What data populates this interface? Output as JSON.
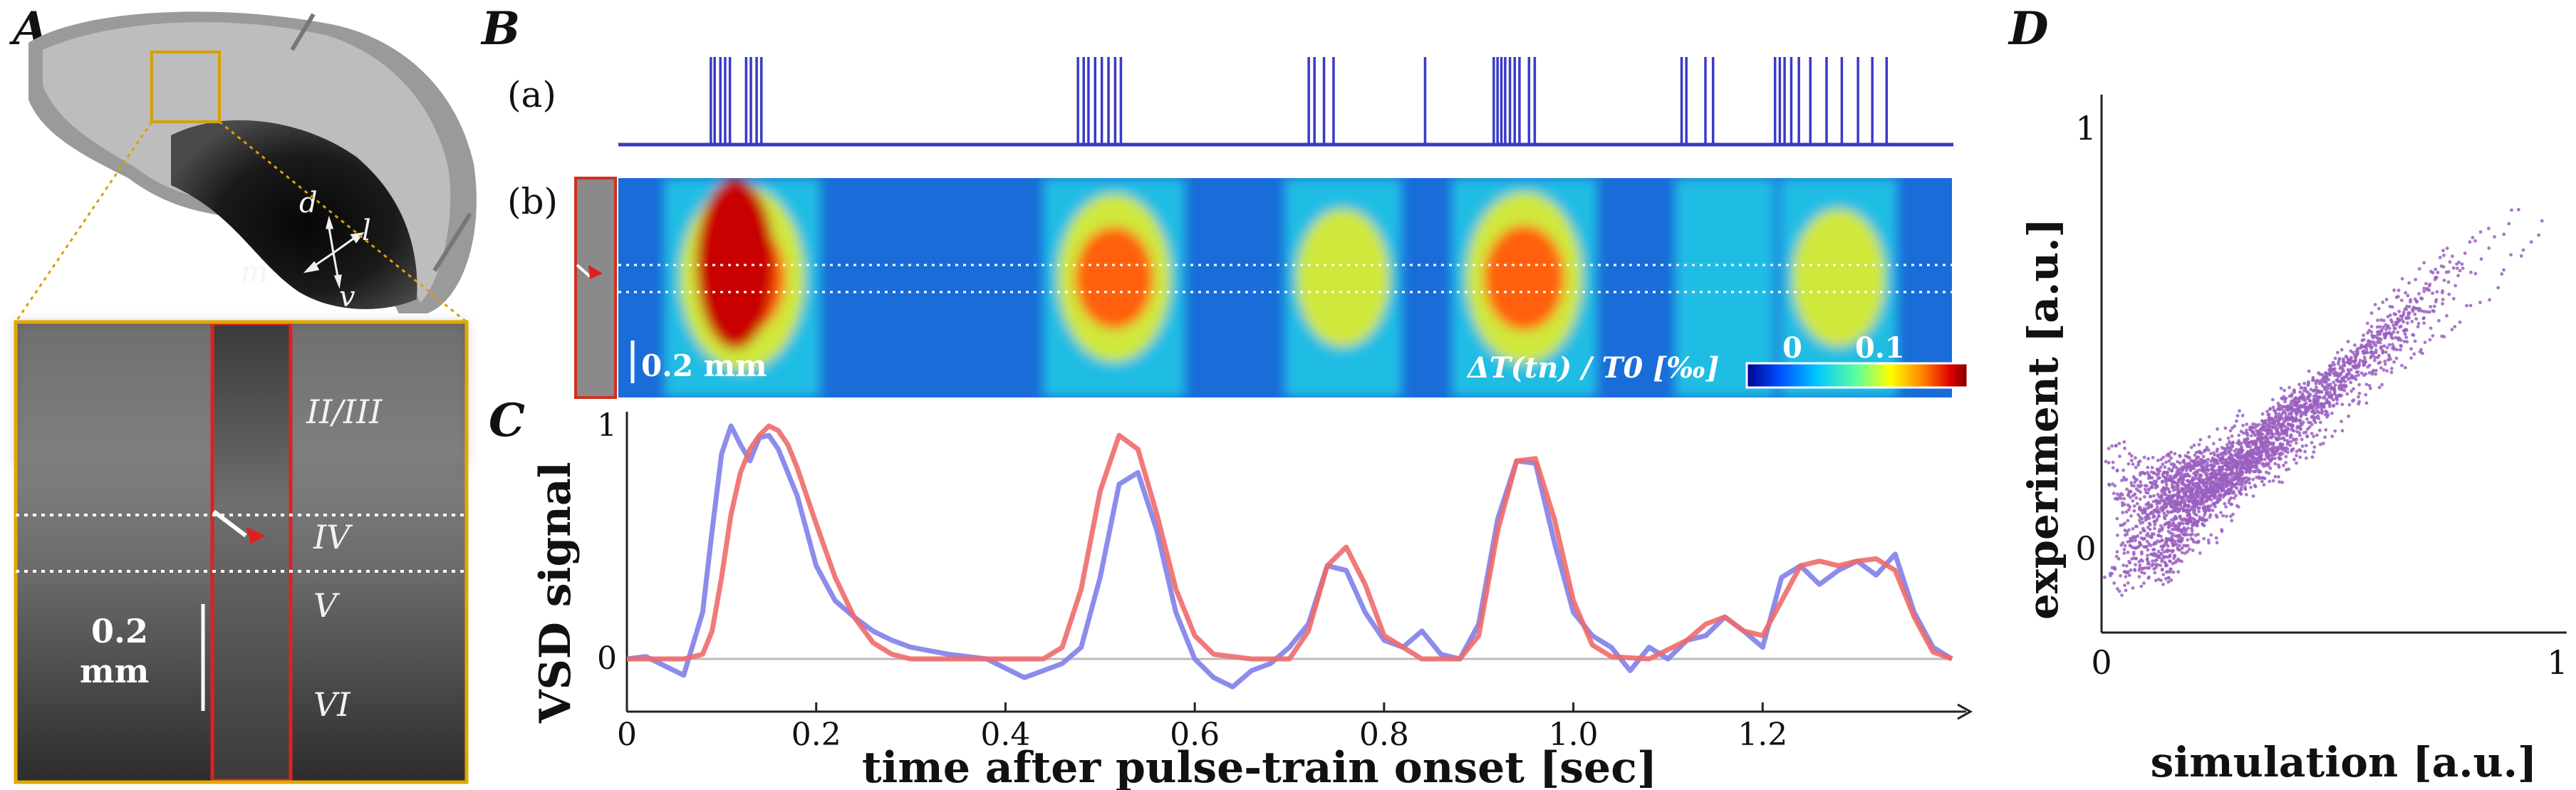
{
  "panels": {
    "A": {
      "letter": "A",
      "orientation": {
        "d": "d",
        "l": "l",
        "m": "m",
        "v": "v"
      },
      "layers": [
        "II/III",
        "IV",
        "V",
        "VI"
      ],
      "scale_bar": {
        "line1": "0.2",
        "line2": "mm"
      }
    },
    "B": {
      "letter": "B",
      "row_a_label": "(a)",
      "row_b_label": "(b)",
      "scale_bar_label": "0.2 mm",
      "colorbar": {
        "title": "ΔT(tn) / T0 [‰]",
        "tick0": "0",
        "tick1": "0.1",
        "colors": [
          "#00008f",
          "#0050ff",
          "#00c8ff",
          "#60ff9a",
          "#ffff00",
          "#ff8000",
          "#e00000",
          "#800000"
        ]
      },
      "pulse_color": "#3a3ac8"
    },
    "C": {
      "letter": "C",
      "ylabel": "VSD signal",
      "xlabel": "time after pulse-train onset [sec]",
      "xticks": [
        "0",
        "0.2",
        "0.4",
        "0.6",
        "0.8",
        "1.0",
        "1.2"
      ],
      "yticks": [
        "0",
        "1"
      ]
    },
    "D": {
      "letter": "D",
      "xlabel": "simulation [a.u.]",
      "ylabel": "experiment [a.u.]",
      "xticks": [
        "0",
        "1"
      ],
      "yticks": [
        "0",
        "1"
      ]
    }
  },
  "chart_data": [
    {
      "type": "line",
      "panel": "B(a)",
      "x_unit": "sec",
      "pulse_times": [
        0.097,
        0.101,
        0.107,
        0.112,
        0.117,
        0.134,
        0.139,
        0.145,
        0.15,
        0.482,
        0.488,
        0.493,
        0.5,
        0.507,
        0.514,
        0.521,
        0.527,
        0.724,
        0.73,
        0.74,
        0.75,
        0.846,
        0.918,
        0.922,
        0.926,
        0.93,
        0.935,
        0.94,
        0.945,
        0.955,
        0.961,
        1.115,
        1.12,
        1.14,
        1.148,
        1.213,
        1.218,
        1.223,
        1.23,
        1.238,
        1.25,
        1.267,
        1.283,
        1.3,
        1.315,
        1.33
      ],
      "xlim": [
        0,
        1.4
      ]
    },
    {
      "type": "heatmap",
      "panel": "B(b)",
      "x_unit": "sec",
      "value_unit": "‰",
      "clim": [
        0,
        0.12
      ],
      "response_peaks": [
        {
          "t": 0.13,
          "amplitude": 1.0
        },
        {
          "t": 0.52,
          "amplitude": 0.8
        },
        {
          "t": 0.76,
          "amplitude": 0.45
        },
        {
          "t": 0.95,
          "amplitude": 0.85
        },
        {
          "t": 1.16,
          "amplitude": 0.2
        },
        {
          "t": 1.28,
          "amplitude": 0.45
        }
      ]
    },
    {
      "type": "line",
      "panel": "C",
      "xlabel": "time after pulse-train onset [sec]",
      "ylabel": "VSD signal",
      "xlim": [
        0,
        1.4
      ],
      "ylim": [
        -0.15,
        1.05
      ],
      "series": [
        {
          "color": "#8080ea",
          "x": [
            0,
            0.02,
            0.04,
            0.06,
            0.08,
            0.09,
            0.1,
            0.11,
            0.12,
            0.13,
            0.14,
            0.15,
            0.16,
            0.18,
            0.2,
            0.22,
            0.24,
            0.26,
            0.28,
            0.3,
            0.34,
            0.38,
            0.42,
            0.44,
            0.46,
            0.48,
            0.5,
            0.52,
            0.54,
            0.56,
            0.58,
            0.6,
            0.62,
            0.64,
            0.66,
            0.68,
            0.7,
            0.72,
            0.74,
            0.76,
            0.78,
            0.8,
            0.82,
            0.84,
            0.86,
            0.88,
            0.9,
            0.92,
            0.94,
            0.96,
            0.98,
            1.0,
            1.02,
            1.04,
            1.06,
            1.08,
            1.1,
            1.12,
            1.14,
            1.16,
            1.18,
            1.2,
            1.22,
            1.24,
            1.26,
            1.28,
            1.3,
            1.32,
            1.34,
            1.36,
            1.38,
            1.4
          ],
          "y": [
            0,
            0.01,
            -0.03,
            -0.07,
            0.2,
            0.55,
            0.88,
            1.0,
            0.92,
            0.85,
            0.95,
            0.96,
            0.9,
            0.7,
            0.4,
            0.25,
            0.18,
            0.12,
            0.08,
            0.05,
            0.02,
            0.0,
            -0.08,
            -0.05,
            -0.02,
            0.05,
            0.35,
            0.75,
            0.8,
            0.55,
            0.2,
            0.0,
            -0.08,
            -0.12,
            -0.05,
            -0.02,
            0.05,
            0.15,
            0.4,
            0.38,
            0.2,
            0.08,
            0.05,
            0.12,
            0.02,
            0.0,
            0.15,
            0.6,
            0.85,
            0.84,
            0.5,
            0.2,
            0.1,
            0.05,
            -0.05,
            0.05,
            0.0,
            0.08,
            0.1,
            0.18,
            0.12,
            0.05,
            0.35,
            0.4,
            0.32,
            0.38,
            0.42,
            0.36,
            0.45,
            0.2,
            0.05,
            0.0
          ]
        },
        {
          "color": "#f06a6a",
          "x": [
            0,
            0.04,
            0.06,
            0.08,
            0.09,
            0.1,
            0.11,
            0.12,
            0.13,
            0.14,
            0.15,
            0.16,
            0.17,
            0.18,
            0.2,
            0.22,
            0.24,
            0.26,
            0.28,
            0.3,
            0.34,
            0.4,
            0.44,
            0.46,
            0.48,
            0.5,
            0.52,
            0.54,
            0.56,
            0.58,
            0.6,
            0.62,
            0.66,
            0.7,
            0.72,
            0.74,
            0.76,
            0.78,
            0.8,
            0.84,
            0.88,
            0.9,
            0.92,
            0.94,
            0.96,
            0.98,
            1.0,
            1.02,
            1.04,
            1.08,
            1.12,
            1.14,
            1.16,
            1.18,
            1.2,
            1.22,
            1.24,
            1.26,
            1.28,
            1.3,
            1.32,
            1.34,
            1.36,
            1.38,
            1.4
          ],
          "y": [
            0,
            0,
            0,
            0.02,
            0.12,
            0.35,
            0.62,
            0.8,
            0.9,
            0.96,
            1.0,
            0.98,
            0.92,
            0.82,
            0.58,
            0.35,
            0.18,
            0.07,
            0.02,
            0.0,
            0,
            0,
            0,
            0.05,
            0.3,
            0.72,
            0.96,
            0.9,
            0.62,
            0.3,
            0.1,
            0.02,
            0,
            0.0,
            0.12,
            0.4,
            0.48,
            0.32,
            0.1,
            0.0,
            0.0,
            0.1,
            0.55,
            0.85,
            0.86,
            0.6,
            0.25,
            0.06,
            0.01,
            0,
            0.08,
            0.15,
            0.18,
            0.12,
            0.1,
            0.25,
            0.4,
            0.42,
            0.4,
            0.42,
            0.43,
            0.38,
            0.18,
            0.03,
            0.0
          ]
        }
      ]
    },
    {
      "type": "scatter",
      "panel": "D",
      "xlabel": "simulation [a.u.]",
      "ylabel": "experiment [a.u.]",
      "xlim": [
        0,
        1
      ],
      "ylim": [
        -0.2,
        1.0
      ],
      "color": "#9a5fc0",
      "description_points": "dense dotted trajectory scatter along diagonal"
    }
  ]
}
